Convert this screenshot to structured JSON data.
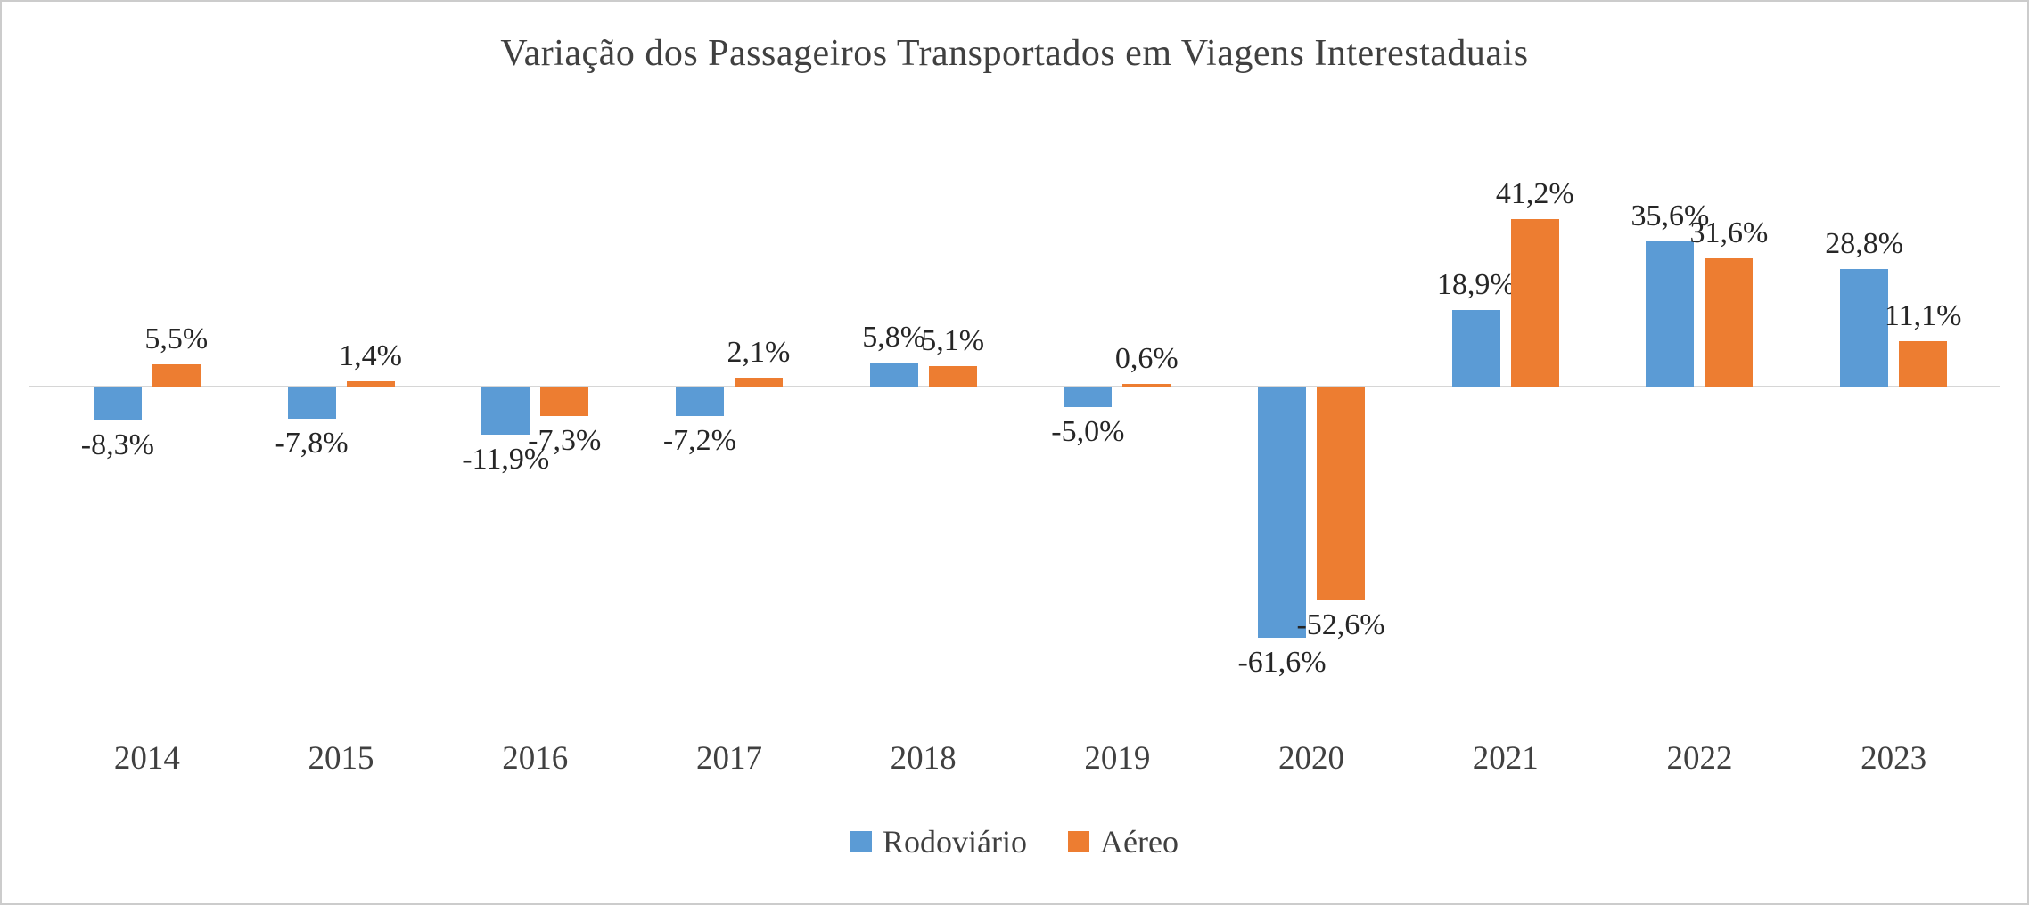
{
  "chart_data": {
    "type": "bar",
    "title": "Variação dos Passageiros Transportados em Viagens Interestaduais",
    "categories": [
      "2014",
      "2015",
      "2016",
      "2017",
      "2018",
      "2019",
      "2020",
      "2021",
      "2022",
      "2023"
    ],
    "series": [
      {
        "name": "Rodoviário",
        "color": "#5B9BD5",
        "values": [
          -8.3,
          -7.8,
          -11.9,
          -7.2,
          5.8,
          -5.0,
          -61.6,
          18.9,
          35.6,
          28.8
        ],
        "labels": [
          "-8,3%",
          "-7,8%",
          "-11,9%",
          "-7,2%",
          "5,8%",
          "-5,0%",
          "-61,6%",
          "18,9%",
          "35,6%",
          "28,8%"
        ]
      },
      {
        "name": "Aéreo",
        "color": "#ED7D31",
        "values": [
          5.5,
          1.4,
          -7.3,
          2.1,
          5.1,
          0.6,
          -52.6,
          41.2,
          31.6,
          11.1
        ],
        "labels": [
          "5,5%",
          "1,4%",
          "-7,3%",
          "2,1%",
          "5,1%",
          "0,6%",
          "-52,6%",
          "41,2%",
          "31,6%",
          "11,1%"
        ]
      }
    ],
    "ylabel": "",
    "xlabel": "",
    "ylim": [
      -70,
      50
    ],
    "grid": false,
    "axis_line_color": "#d6d6d6",
    "legend_position": "bottom"
  }
}
